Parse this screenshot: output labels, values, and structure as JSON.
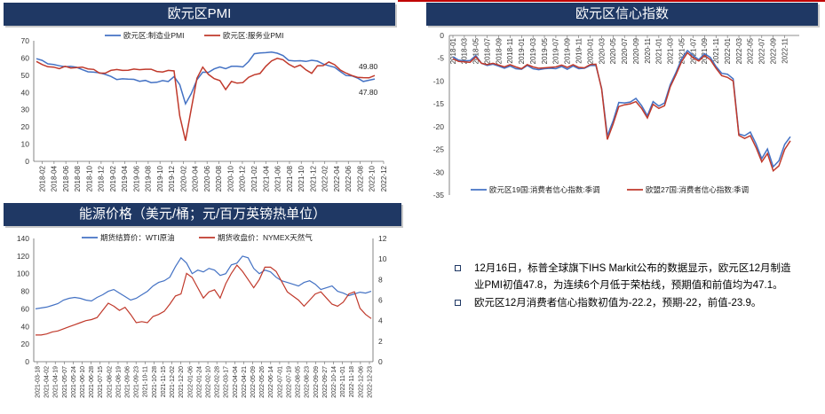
{
  "panels": {
    "pmi_title": "欧元区PMI",
    "confidence_title": "欧元区信心指数",
    "energy_title": "能源价格（美元/桶；元/百万英镑热单位）"
  },
  "notes": [
    "12月16日，标普全球旗下IHS Markit公布的数据显示，欧元区12月制造业PMI初值47.8，为连续6个月低于荣枯线，预期值和前值均为47.1。",
    "欧元区12月消费者信心指数初值为-22.2，预期-22，前值-23.9。"
  ],
  "colors": {
    "blue": "#4472c4",
    "red": "#c0392b",
    "navy": "#1f3864",
    "accent": "#c00000"
  },
  "chart_data": [
    {
      "id": "pmi",
      "type": "line",
      "ylim": [
        0,
        70
      ],
      "yticks": [
        0,
        10,
        20,
        30,
        40,
        50,
        60,
        70
      ],
      "x_tick_labels": [
        "2018-02",
        "2018-04",
        "2018-06",
        "2018-08",
        "2018-10",
        "2018-12",
        "2019-02",
        "2019-04",
        "2019-06",
        "2019-08",
        "2019-10",
        "2019-12",
        "2020-02",
        "2020-04",
        "2020-06",
        "2020-08",
        "2020-10",
        "2020-12",
        "2021-02",
        "2021-04",
        "2021-06",
        "2021-08",
        "2021-10",
        "2021-12",
        "2022-02",
        "2022-04",
        "2022-06",
        "2022-08",
        "2022-10",
        "2022-12"
      ],
      "x_start": "2018-01",
      "series": [
        {
          "name": "欧元区:制造业PMI",
          "color": "#4472c4",
          "values": [
            59.6,
            58.6,
            56.6,
            56.2,
            55.5,
            54.9,
            55.1,
            54.6,
            53.2,
            52.0,
            51.8,
            51.4,
            50.5,
            49.3,
            47.5,
            47.9,
            47.7,
            47.6,
            46.5,
            47.0,
            45.7,
            45.9,
            46.9,
            46.3,
            49.2,
            44.5,
            33.4,
            39.4,
            47.4,
            51.8,
            51.7,
            53.7,
            54.8,
            53.8,
            55.2,
            55.2,
            54.8,
            57.9,
            62.5,
            62.9,
            63.1,
            63.4,
            62.8,
            61.4,
            58.6,
            58.3,
            58.4,
            58.0,
            58.7,
            58.2,
            56.5,
            55.5,
            54.6,
            52.1,
            49.8,
            49.6,
            48.4,
            46.4,
            47.1,
            47.8
          ]
        },
        {
          "name": "欧元区:服务业PMI",
          "color": "#c0392b",
          "values": [
            58.0,
            56.2,
            54.9,
            54.7,
            53.8,
            55.2,
            54.2,
            54.4,
            54.7,
            53.7,
            53.4,
            51.2,
            51.2,
            52.8,
            53.3,
            52.8,
            52.9,
            53.6,
            53.2,
            53.5,
            53.5,
            52.2,
            51.9,
            52.8,
            52.5,
            26.4,
            12.0,
            30.5,
            48.3,
            54.7,
            50.5,
            48.0,
            46.9,
            41.7,
            46.4,
            45.4,
            45.7,
            48.8,
            50.3,
            51.0,
            55.2,
            58.3,
            59.8,
            59.0,
            56.4,
            54.6,
            55.9,
            53.1,
            51.1,
            55.5,
            55.6,
            57.7,
            56.1,
            53.0,
            51.2,
            49.8,
            48.8,
            48.6,
            48.5,
            49.8
          ]
        }
      ],
      "end_labels": [
        "49.80",
        "47.80"
      ]
    },
    {
      "id": "confidence",
      "type": "line",
      "ylim": [
        -35,
        0
      ],
      "yticks": [
        0,
        -5,
        -10,
        -15,
        -20,
        -25,
        -30,
        -35
      ],
      "x_tick_labels": [
        "2018-01",
        "2018-03",
        "2018-05",
        "2018-07",
        "2018-09",
        "2018-11",
        "2019-01",
        "2019-03",
        "2019-05",
        "2019-07",
        "2019-09",
        "2019-11",
        "2020-01",
        "2020-03",
        "2020-05",
        "2020-07",
        "2020-09",
        "2020-11",
        "2021-01",
        "2021-03",
        "2021-05",
        "2021-07",
        "2021-09",
        "2021-11",
        "2022-01",
        "2022-03",
        "2022-05",
        "2022-07",
        "2022-09",
        "2022-11"
      ],
      "x_start": "2018-01",
      "series": [
        {
          "name": "欧元区19国:消费者信心指数:季调",
          "color": "#4472c4",
          "values": [
            -4.7,
            -5.4,
            -5.6,
            -5.5,
            -4.4,
            -6.1,
            -6.6,
            -6.3,
            -6.7,
            -7.2,
            -6.7,
            -7.3,
            -7.4,
            -6.6,
            -7.3,
            -7.5,
            -7.3,
            -7.2,
            -7.3,
            -6.8,
            -7.4,
            -6.7,
            -7.3,
            -7.2,
            -6.6,
            -6.6,
            -11.6,
            -22.0,
            -18.8,
            -14.7,
            -14.8,
            -14.6,
            -13.8,
            -15.4,
            -17.6,
            -14.5,
            -15.5,
            -14.8,
            -10.8,
            -8.1,
            -5.1,
            -3.3,
            -4.4,
            -5.3,
            -4.0,
            -4.8,
            -6.8,
            -8.3,
            -8.5,
            -9.5,
            -21.6,
            -22.0,
            -21.2,
            -23.8,
            -27.0,
            -24.9,
            -28.8,
            -27.5,
            -23.9,
            -22.2
          ]
        },
        {
          "name": "欧盟27国:消费者信心指数:季调",
          "color": "#c0392b",
          "values": [
            -5.1,
            -5.7,
            -5.8,
            -5.9,
            -4.7,
            -6.1,
            -6.4,
            -6.1,
            -6.5,
            -6.9,
            -6.4,
            -6.9,
            -7.3,
            -6.4,
            -6.9,
            -7.2,
            -7.1,
            -7.0,
            -6.9,
            -6.5,
            -7.0,
            -6.4,
            -7.0,
            -7.1,
            -6.4,
            -6.3,
            -11.8,
            -22.8,
            -19.5,
            -15.6,
            -15.2,
            -15.0,
            -14.5,
            -16.0,
            -18.1,
            -15.1,
            -16.0,
            -15.4,
            -11.3,
            -8.6,
            -5.7,
            -3.8,
            -4.9,
            -5.6,
            -4.4,
            -5.3,
            -7.2,
            -8.8,
            -9.2,
            -10.0,
            -21.9,
            -22.6,
            -22.0,
            -24.6,
            -27.7,
            -25.9,
            -29.7,
            -28.6,
            -25.0,
            -23.1
          ]
        }
      ]
    },
    {
      "id": "energy",
      "type": "line",
      "ylim_left": [
        0,
        140
      ],
      "yticks_left": [
        0,
        20,
        40,
        60,
        80,
        100,
        120,
        140
      ],
      "ylim_right": [
        0,
        12
      ],
      "yticks_right": [
        0,
        2,
        4,
        6,
        8,
        10,
        12
      ],
      "x_tick_labels": [
        "2021-03-18",
        "2021-04-02",
        "2021-04-19",
        "2021-05-07",
        "2021-05-24",
        "2021-06-10",
        "2021-06-28",
        "2021-07-15",
        "2021-08-02",
        "2021-08-19",
        "2021-09-06",
        "2021-09-23",
        "2021-10-11",
        "2021-10-28",
        "2021-11-15",
        "2021-12-02",
        "2021-12-20",
        "2022-01-06",
        "2022-01-24",
        "2022-02-10",
        "2022-02-28",
        "2022-03-17",
        "2022-04-04",
        "2022-04-21",
        "2022-05-09",
        "2022-05-26",
        "2022-06-14",
        "2022-07-01",
        "2022-07-19",
        "2022-08-05",
        "2022-08-23",
        "2022-09-09",
        "2022-09-27",
        "2022-10-14",
        "2022-11-01",
        "2022-11-18",
        "2022-12-06",
        "2022-12-23"
      ],
      "series": [
        {
          "name": "期货结算价：WTI原油",
          "axis": "left",
          "color": "#4472c4",
          "values": [
            60,
            61,
            62,
            64,
            66,
            70,
            72,
            73,
            72,
            70,
            69,
            73,
            76,
            80,
            82,
            78,
            74,
            70,
            72,
            76,
            80,
            86,
            90,
            92,
            96,
            108,
            118,
            112,
            100,
            104,
            102,
            106,
            104,
            98,
            100,
            110,
            112,
            120,
            118,
            106,
            100,
            104,
            102,
            96,
            92,
            90,
            88,
            86,
            90,
            92,
            88,
            82,
            84,
            86,
            80,
            78,
            75,
            77,
            79,
            78,
            80
          ]
        },
        {
          "name": "期货收盘价：NYMEX天然气",
          "axis": "right",
          "color": "#c0392b",
          "values": [
            2.6,
            2.6,
            2.7,
            2.9,
            3.0,
            3.2,
            3.4,
            3.6,
            3.8,
            4.0,
            4.1,
            4.3,
            5.0,
            5.7,
            5.4,
            5.0,
            5.3,
            4.6,
            3.8,
            3.9,
            3.8,
            4.4,
            4.6,
            4.9,
            5.6,
            6.4,
            6.6,
            8.6,
            8.2,
            7.2,
            6.2,
            6.8,
            7.0,
            6.2,
            7.6,
            8.6,
            9.4,
            8.8,
            8.0,
            7.2,
            8.0,
            9.2,
            9.2,
            8.8,
            7.8,
            6.8,
            6.4,
            6.0,
            5.4,
            6.0,
            6.6,
            6.8,
            6.2,
            5.6,
            5.4,
            5.8,
            6.6,
            6.8,
            5.2,
            4.6,
            4.2
          ]
        }
      ]
    }
  ]
}
